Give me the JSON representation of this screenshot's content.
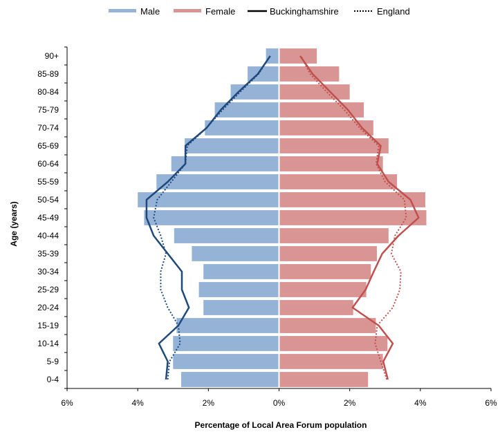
{
  "chart_data": {
    "type": "bar",
    "orientation": "horizontal",
    "layout": "population-pyramid",
    "categories": [
      "0-4",
      "5-9",
      "10-14",
      "15-19",
      "20-24",
      "25-29",
      "30-34",
      "35-39",
      "40-44",
      "45-49",
      "50-54",
      "55-59",
      "60-64",
      "65-69",
      "70-74",
      "75-79",
      "80-84",
      "85-89",
      "90+"
    ],
    "series": [
      {
        "name": "Male",
        "kind": "bar",
        "side": "left",
        "color": "#95b3d7",
        "values": [
          2.75,
          2.98,
          2.98,
          2.88,
          2.12,
          2.25,
          2.12,
          2.45,
          2.95,
          3.8,
          3.98,
          3.45,
          3.03,
          2.65,
          2.08,
          1.8,
          1.35,
          0.87,
          0.35
        ]
      },
      {
        "name": "Female",
        "kind": "bar",
        "side": "right",
        "color": "#d99594",
        "values": [
          2.5,
          2.92,
          3.05,
          2.72,
          2.08,
          2.45,
          2.58,
          2.75,
          3.08,
          4.15,
          4.12,
          3.32,
          2.92,
          3.08,
          2.65,
          2.38,
          1.98,
          1.68,
          1.05
        ]
      },
      {
        "name": "Buckinghamshire",
        "kind": "line",
        "style": "solid",
        "male_color": "#1f497d",
        "female_color": "#c0504d",
        "male_values": [
          3.2,
          3.15,
          3.4,
          2.85,
          2.55,
          2.75,
          2.75,
          3.15,
          3.55,
          3.75,
          3.75,
          3.15,
          2.65,
          2.65,
          2.05,
          1.65,
          1.15,
          0.6,
          0.25
        ],
        "female_values": [
          3.08,
          2.95,
          3.22,
          2.82,
          2.08,
          2.45,
          2.68,
          2.92,
          3.38,
          3.95,
          3.72,
          3.1,
          2.78,
          2.88,
          2.35,
          1.95,
          1.45,
          0.95,
          0.6
        ]
      },
      {
        "name": "England",
        "kind": "line",
        "style": "dotted",
        "male_values": [
          3.15,
          3.1,
          2.8,
          2.85,
          3.15,
          3.35,
          3.35,
          3.2,
          3.35,
          3.55,
          3.45,
          3.05,
          2.65,
          2.6,
          2.05,
          1.6,
          1.1,
          0.58,
          0.25
        ],
        "female_values": [
          3.05,
          2.88,
          2.72,
          2.78,
          3.22,
          3.42,
          3.45,
          3.18,
          3.28,
          3.6,
          3.55,
          3.0,
          2.75,
          2.82,
          2.28,
          1.85,
          1.35,
          0.88,
          0.62
        ]
      }
    ],
    "x_ticks": [
      "6%",
      "4%",
      "2%",
      "0%",
      "2%",
      "4%",
      "6%"
    ],
    "xlim": [
      -6,
      6
    ],
    "xlabel": "Percentage of Local Area Forum population",
    "ylabel": "Age (years)",
    "legend_position": "top",
    "grid": false
  }
}
